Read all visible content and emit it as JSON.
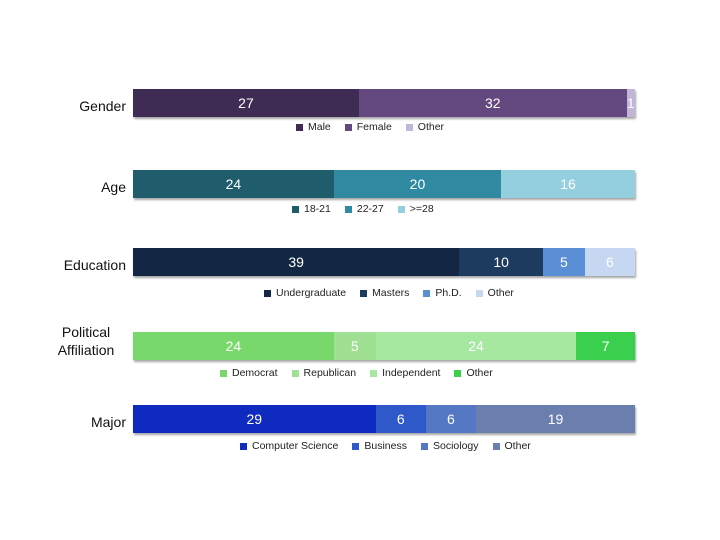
{
  "chart_data": [
    {
      "type": "bar",
      "orientation": "horizontal",
      "stacked": true,
      "category": "Gender",
      "series": [
        {
          "name": "Male",
          "value": 27,
          "color": "#3f2c55"
        },
        {
          "name": "Female",
          "value": 32,
          "color": "#63497f"
        },
        {
          "name": "Other",
          "value": 1,
          "color": "#c1b5d8"
        }
      ],
      "legend_position": "bottom"
    },
    {
      "type": "bar",
      "orientation": "horizontal",
      "stacked": true,
      "category": "Age",
      "series": [
        {
          "name": "18-21",
          "value": 24,
          "color": "#1f5d6c"
        },
        {
          "name": "22-27",
          "value": 20,
          "color": "#2f8aa2"
        },
        {
          "name": ">=28",
          "value": 16,
          "color": "#93cfdf"
        }
      ],
      "legend_position": "bottom"
    },
    {
      "type": "bar",
      "orientation": "horizontal",
      "stacked": true,
      "category": "Education",
      "series": [
        {
          "name": "Undergraduate",
          "value": 39,
          "color": "#132744"
        },
        {
          "name": "Masters",
          "value": 10,
          "color": "#1d3a5f"
        },
        {
          "name": "Ph.D.",
          "value": 5,
          "color": "#5b8fd5"
        },
        {
          "name": "Other",
          "value": 6,
          "color": "#c5d7f1"
        }
      ],
      "legend_position": "bottom"
    },
    {
      "type": "bar",
      "orientation": "horizontal",
      "stacked": true,
      "category": "Political Affiliation",
      "series": [
        {
          "name": "Democrat",
          "value": 24,
          "color": "#78d86c"
        },
        {
          "name": "Republican",
          "value": 5,
          "color": "#9fe093"
        },
        {
          "name": "Independent",
          "value": 24,
          "color": "#a6e8a0"
        },
        {
          "name": "Other",
          "value": 7,
          "color": "#3ad04d"
        }
      ],
      "legend_position": "bottom"
    },
    {
      "type": "bar",
      "orientation": "horizontal",
      "stacked": true,
      "category": "Major",
      "series": [
        {
          "name": "Computer Science",
          "value": 29,
          "color": "#0f2bbf"
        },
        {
          "name": "Business",
          "value": 6,
          "color": "#2f58c9"
        },
        {
          "name": "Sociology",
          "value": 6,
          "color": "#5478c4"
        },
        {
          "name": "Other",
          "value": 19,
          "color": "#6b7fae"
        }
      ],
      "legend_position": "bottom"
    }
  ]
}
